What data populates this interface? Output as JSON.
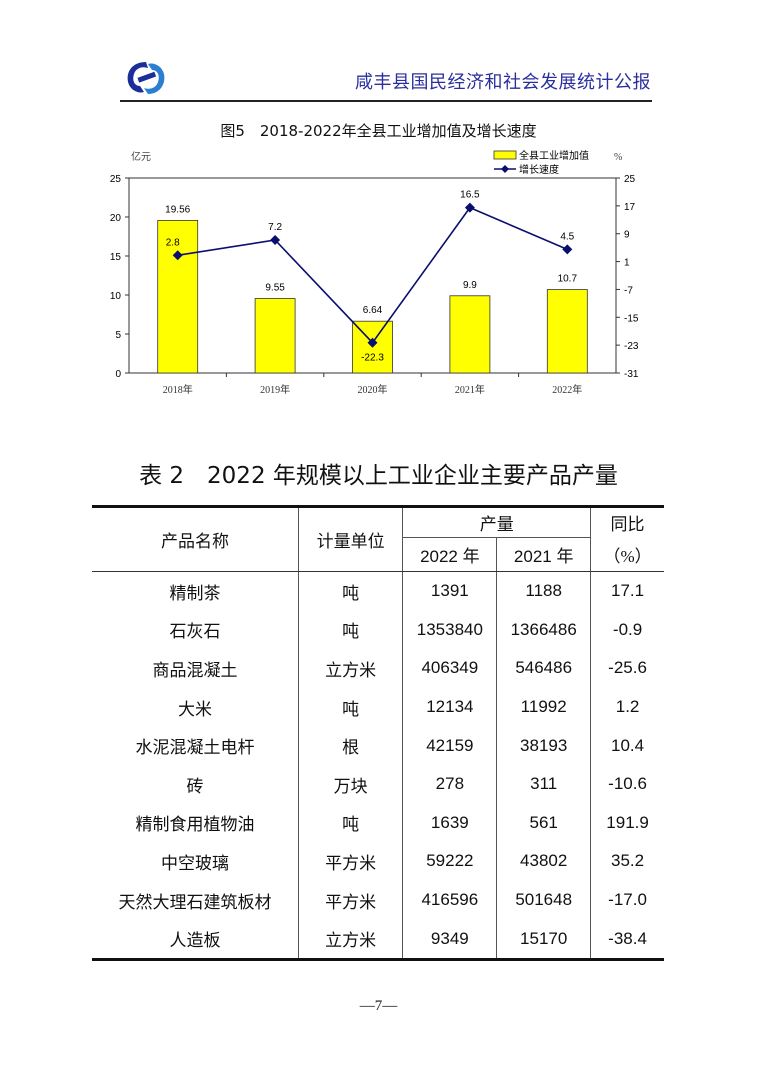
{
  "header": {
    "title": "咸丰县国民经济和社会发展统计公报"
  },
  "figure": {
    "title": "图5　2018-2022年全县工业增加值及增长速度"
  },
  "chart_data": {
    "type": "bar+line",
    "title": "图5　2018-2022年全县工业增加值及增长速度",
    "categories": [
      "2018年",
      "2019年",
      "2020年",
      "2021年",
      "2022年"
    ],
    "y_left": {
      "label": "亿元",
      "range": [
        0,
        25
      ],
      "ticks": [
        0,
        5,
        10,
        15,
        20,
        25
      ]
    },
    "y_right": {
      "label": "%",
      "range": [
        -31,
        25
      ],
      "ticks": [
        -31,
        -23,
        -15,
        -7,
        1,
        9,
        17,
        25
      ]
    },
    "series": [
      {
        "name": "全县工业增加值",
        "type": "bar",
        "axis": "left",
        "color": "#ffff00",
        "values": [
          19.56,
          9.55,
          6.64,
          9.9,
          10.7
        ]
      },
      {
        "name": "增长速度",
        "type": "line",
        "axis": "right",
        "color": "#0a0f6e",
        "values": [
          2.8,
          7.2,
          -22.3,
          16.5,
          4.5
        ]
      }
    ],
    "legend": "top-right",
    "grid": false
  },
  "table": {
    "title": "表 2　2022 年规模以上工业企业主要产品产量",
    "headers": {
      "name": "产品名称",
      "unit": "计量单位",
      "output": "产量",
      "y2022": "2022 年",
      "y2021": "2021 年",
      "yoy1": "同比",
      "yoy2": "（%）"
    },
    "rows": [
      [
        "精制茶",
        "吨",
        "1391",
        "1188",
        "17.1"
      ],
      [
        "石灰石",
        "吨",
        "1353840",
        "1366486",
        "-0.9"
      ],
      [
        "商品混凝土",
        "立方米",
        "406349",
        "546486",
        "-25.6"
      ],
      [
        "大米",
        "吨",
        "12134",
        "11992",
        "1.2"
      ],
      [
        "水泥混凝土电杆",
        "根",
        "42159",
        "38193",
        "10.4"
      ],
      [
        "砖",
        "万块",
        "278",
        "311",
        "-10.6"
      ],
      [
        "精制食用植物油",
        "吨",
        "1639",
        "561",
        "191.9"
      ],
      [
        "中空玻璃",
        "平方米",
        "59222",
        "43802",
        "35.2"
      ],
      [
        "天然大理石建筑板材",
        "平方米",
        "416596",
        "501648",
        "-17.0"
      ],
      [
        "人造板",
        "立方米",
        "9349",
        "15170",
        "-38.4"
      ]
    ]
  },
  "footer": {
    "page": "—7—"
  }
}
